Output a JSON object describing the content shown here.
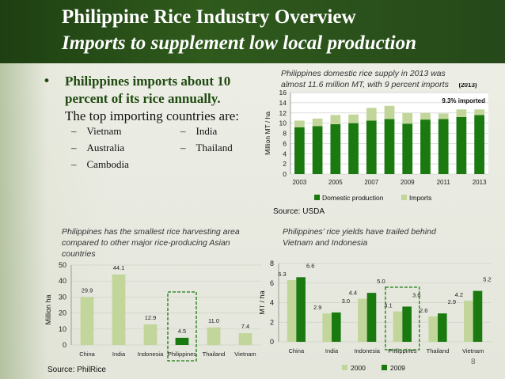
{
  "title": {
    "line1": "Philippine Rice Industry Overview",
    "line2": "Imports to supplement low local production"
  },
  "bullets": {
    "main_line1": "Philippines imports about 10",
    "main_line2": "percent of its rice annually.",
    "sub": "The top importing countries are:",
    "countries": [
      "Vietnam",
      "Australia",
      "Cambodia",
      "India",
      "Thailand"
    ],
    "dash": "–"
  },
  "page_number": "8",
  "colors": {
    "dark_green": "#1a7a10",
    "light_green": "#c2d69b",
    "highlight": "#1a7a10"
  },
  "chart_data": [
    {
      "type": "bar",
      "stacked": true,
      "title_line1": "Philippines domestic rice supply in 2013 was",
      "title_line2": "almost 11.6 million MT, with 9 percent imports",
      "annotation_year": "(2013)",
      "annotation_pct": "9.3% imported",
      "ylabel": "Million MT / ha",
      "ylim": [
        0,
        16
      ],
      "yticks": [
        "0",
        "2",
        "4",
        "6",
        "8",
        "10",
        "12",
        "14",
        "16"
      ],
      "x": [
        "2003",
        "2004",
        "2005",
        "2006",
        "2007",
        "2008",
        "2009",
        "2010",
        "2011",
        "2012",
        "2013"
      ],
      "xtick_labels": [
        "2003",
        "2005",
        "2007",
        "2009",
        "2011",
        "2013"
      ],
      "series": [
        {
          "name": "Domestic production",
          "values": [
            9.2,
            9.4,
            9.8,
            10.0,
            10.5,
            10.8,
            9.9,
            10.7,
            10.8,
            11.2,
            11.6
          ]
        },
        {
          "name": "Imports",
          "values": [
            1.3,
            1.5,
            1.8,
            1.7,
            2.5,
            2.6,
            2.1,
            1.3,
            1.1,
            1.5,
            1.1
          ]
        }
      ],
      "legend": "bottom",
      "source": "Source: USDA"
    },
    {
      "type": "bar",
      "title_line1": "Philippines has the smallest rice harvesting area",
      "title_line2": "compared to other major rice-producing Asian",
      "title_line3": "countries",
      "ylabel": "Million ha",
      "ylim": [
        0,
        50
      ],
      "yticks": [
        "0",
        "10",
        "20",
        "30",
        "40",
        "50"
      ],
      "categories": [
        "China",
        "India",
        "Indonesia",
        "Philippines",
        "Thailand",
        "Vietnam"
      ],
      "values": [
        29.9,
        44.1,
        12.9,
        4.5,
        11.0,
        7.4
      ],
      "value_labels": [
        "29.9",
        "44.1",
        "12.9",
        "4.5",
        "11.0",
        "7.4"
      ],
      "highlight": "Philippines",
      "source": "Source: PhilRice"
    },
    {
      "type": "bar",
      "title_line1": "Philippines’ rice yields have trailed behind",
      "title_line2": "Vietnam and Indonesia",
      "ylabel": "MT / ha",
      "ylim": [
        0,
        8
      ],
      "yticks": [
        "0",
        "2",
        "4",
        "6",
        "8"
      ],
      "categories": [
        "China",
        "India",
        "Indonesia",
        "Philippines",
        "Thailand",
        "Vietnam"
      ],
      "series": [
        {
          "name": "2000",
          "values": [
            6.3,
            2.9,
            4.4,
            3.1,
            2.6,
            4.2
          ],
          "labels": [
            "6.3",
            "2.9",
            "4.4",
            "3.1",
            "2.6",
            "4.2"
          ]
        },
        {
          "name": "2009",
          "values": [
            6.6,
            3.0,
            5.0,
            3.6,
            2.9,
            5.2
          ],
          "labels": [
            "6.6",
            "3.0",
            "5.0",
            "3.6",
            "2.9",
            "5.2"
          ]
        }
      ],
      "highlight": "Philippines",
      "legend": "bottom"
    }
  ]
}
